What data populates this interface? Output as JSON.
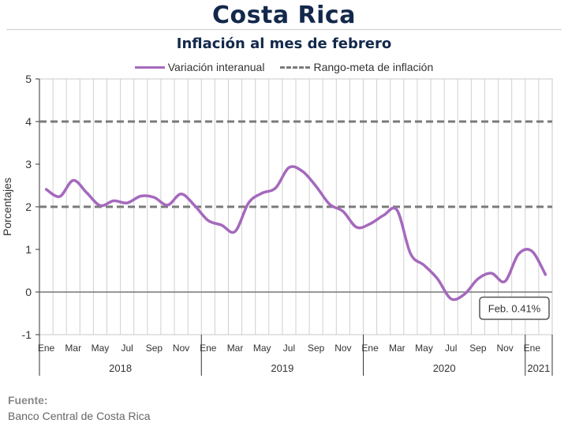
{
  "header": {
    "title": "Costa Rica",
    "subtitle": "Inflación al mes de febrero"
  },
  "legend": {
    "series_label": "Variación interanual",
    "target_label": "Rango-meta de inflación"
  },
  "source": {
    "label": "Fuente:",
    "value": "Banco Central de Costa Rica"
  },
  "colors": {
    "series": "#a569bd",
    "target": "#7a7a7a",
    "grid": "#d0d0d0",
    "axis": "#333333"
  },
  "chart_data": {
    "type": "line",
    "ylabel": "Porcentajes",
    "ylim": [
      -1,
      5
    ],
    "yticks": [
      -1,
      0,
      1,
      2,
      3,
      4,
      5
    ],
    "grid": "vertical lines per month",
    "legend_position": "top",
    "months": [
      "2018-01",
      "2018-02",
      "2018-03",
      "2018-04",
      "2018-05",
      "2018-06",
      "2018-07",
      "2018-08",
      "2018-09",
      "2018-10",
      "2018-11",
      "2018-12",
      "2019-01",
      "2019-02",
      "2019-03",
      "2019-04",
      "2019-05",
      "2019-06",
      "2019-07",
      "2019-08",
      "2019-09",
      "2019-10",
      "2019-11",
      "2019-12",
      "2020-01",
      "2020-02",
      "2020-03",
      "2020-04",
      "2020-05",
      "2020-06",
      "2020-07",
      "2020-08",
      "2020-09",
      "2020-10",
      "2020-11",
      "2020-12",
      "2021-01",
      "2021-02"
    ],
    "month_tick_labels": [
      "Ene",
      "",
      "Mar",
      "",
      "May",
      "",
      "Jul",
      "",
      "Sep",
      "",
      "Nov",
      "",
      "Ene",
      "",
      "Mar",
      "",
      "May",
      "",
      "Jul",
      "",
      "Sep",
      "",
      "Nov",
      "",
      "Ene",
      "",
      "Mar",
      "",
      "May",
      "",
      "Jul",
      "",
      "Sep",
      "",
      "Nov",
      "",
      "Ene",
      ""
    ],
    "years": [
      {
        "label": "2018",
        "months": 12
      },
      {
        "label": "2019",
        "months": 12
      },
      {
        "label": "2020",
        "months": 12
      },
      {
        "label": "2021",
        "months": 2
      }
    ],
    "series": [
      {
        "name": "Variación interanual",
        "values": [
          2.41,
          2.24,
          2.62,
          2.33,
          2.03,
          2.14,
          2.09,
          2.25,
          2.22,
          2.04,
          2.3,
          2.03,
          1.68,
          1.57,
          1.42,
          2.09,
          2.32,
          2.44,
          2.92,
          2.83,
          2.48,
          2.06,
          1.89,
          1.52,
          1.6,
          1.8,
          1.92,
          0.9,
          0.63,
          0.31,
          -0.16,
          -0.05,
          0.31,
          0.44,
          0.25,
          0.89,
          0.96,
          0.41
        ]
      }
    ],
    "target_range": {
      "name": "Rango-meta de inflación",
      "lower": 2,
      "upper": 4
    },
    "annotation": {
      "text": "Feb. 0.41%",
      "month": "2021-02",
      "value": 0.41
    }
  }
}
